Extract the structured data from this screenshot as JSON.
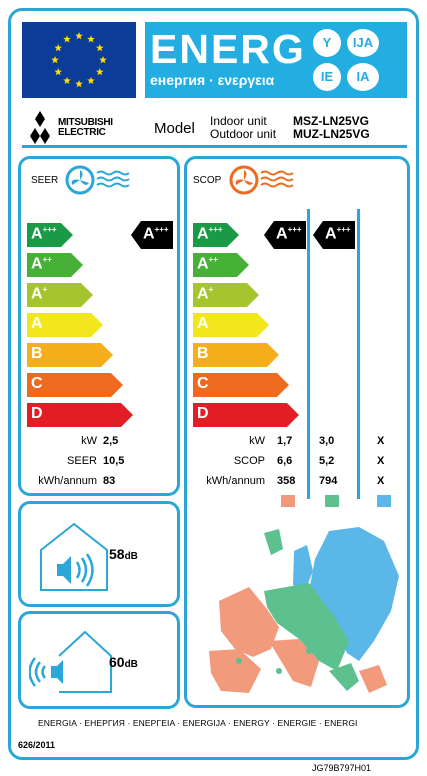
{
  "header": {
    "energ": "ENERG",
    "energ_sub": "енергия · ενεργεια",
    "langs": [
      "Y",
      "IJA",
      "IE",
      "IA"
    ],
    "flag_color": "#0a3c98",
    "banner_color": "#23aee2"
  },
  "supplier": {
    "name_line1": "MITSUBISHI",
    "name_line2": "ELECTRIC",
    "logo_icon": "mitsubishi-diamonds-icon"
  },
  "model": {
    "label": "Model",
    "indoor_label": "Indoor unit",
    "outdoor_label": "Outdoor unit",
    "indoor_model": "MSZ-LN25VG",
    "outdoor_model": "MUZ-LN25VG"
  },
  "scale": {
    "classes": [
      {
        "letter": "A",
        "sup": "+++",
        "color": "#1a9a46"
      },
      {
        "letter": "A",
        "sup": "++",
        "color": "#47b037"
      },
      {
        "letter": "A",
        "sup": "+",
        "color": "#a5c52e"
      },
      {
        "letter": "A",
        "sup": "",
        "color": "#f2e61c"
      },
      {
        "letter": "B",
        "sup": "",
        "color": "#f6ae1c"
      },
      {
        "letter": "C",
        "sup": "",
        "color": "#ee6a1f"
      },
      {
        "letter": "D",
        "sup": "",
        "color": "#e31d25"
      }
    ]
  },
  "seer": {
    "title": "SEER",
    "icon": "cooling-fan-icon",
    "rating_letter": "A",
    "rating_sup": "+++",
    "labels": [
      "kW",
      "SEER",
      "kWh/annum"
    ],
    "values": [
      "2,5",
      "10,5",
      "83"
    ]
  },
  "scop": {
    "title": "SCOP",
    "icon": "heating-fan-icon",
    "rating_warmer_letter": "A",
    "rating_warmer_sup": "+++",
    "rating_average_letter": "A",
    "rating_average_sup": "+++",
    "labels": [
      "kW",
      "SCOP",
      "kWh/annum"
    ],
    "warmer": [
      "1,7",
      "6,6",
      "358"
    ],
    "average": [
      "3,0",
      "5,2",
      "794"
    ],
    "colder": [
      "X",
      "X",
      "X"
    ],
    "zone_colors": [
      "#f19a7c",
      "#5cc08f",
      "#5ab7e8"
    ]
  },
  "noise_indoor": {
    "value": "58",
    "unit": "dB",
    "icon": "indoor-speaker-icon"
  },
  "noise_outdoor": {
    "value": "60",
    "unit": "dB",
    "icon": "outdoor-speaker-icon"
  },
  "footer": {
    "languages": "ENERGIA · ЕНЕРГИЯ · ΕΝΕΡΓΕΙΑ · ENERGIJA · ENERGY · ENERGIE · ENERGI",
    "regulation": "626/2011",
    "code": "JG79B797H01"
  }
}
